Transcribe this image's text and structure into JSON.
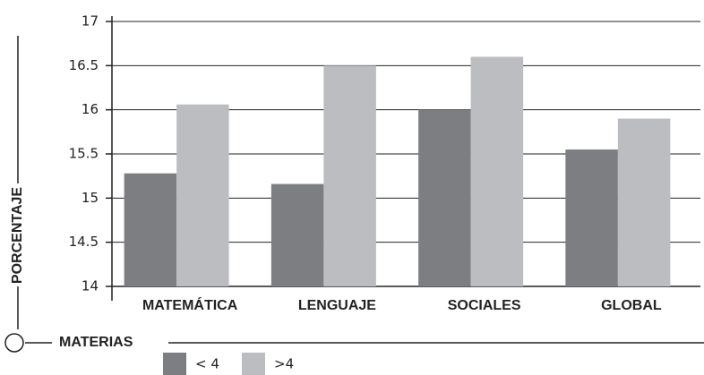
{
  "chart_data": {
    "type": "bar",
    "categories": [
      "MATEMÁTICA",
      "LENGUAJE",
      "SOCIALES",
      "GLOBAL"
    ],
    "series": [
      {
        "name": "< 4",
        "color": "#7d7e82",
        "values": [
          15.28,
          15.16,
          16.0,
          15.55
        ]
      },
      {
        "name": ">4",
        "color": "#bcbdc0",
        "values": [
          16.06,
          16.5,
          16.6,
          15.9
        ]
      }
    ],
    "ylabel": "PORCENTAJE",
    "xlabel": "MATERIAS",
    "ylim": [
      14,
      17
    ],
    "yticks": [
      14,
      14.5,
      15,
      15.5,
      16,
      16.5,
      17
    ],
    "grid": true
  }
}
